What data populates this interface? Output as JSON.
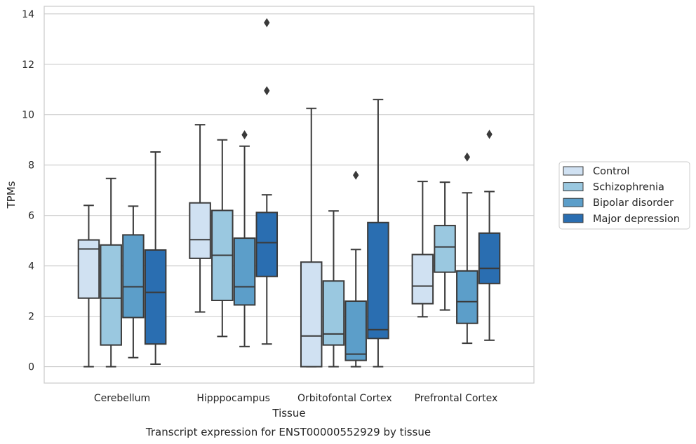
{
  "caption": "Transcript expression for ENST00000552929 by tissue",
  "chart_data": {
    "type": "boxplot",
    "xlabel": "Tissue",
    "ylabel": "TPMs",
    "ylim": [
      -0.65,
      14.3
    ],
    "yticks": [
      0,
      2,
      4,
      6,
      8,
      10,
      12,
      14
    ],
    "grid": true,
    "legend_position": "right",
    "categories": [
      "Cerebellum",
      "Hipppocampus",
      "Orbitofontal Cortex",
      "Prefrontal Cortex"
    ],
    "series": [
      {
        "name": "Control",
        "color": "#d0e1f2",
        "boxes": [
          {
            "whislo": 0.0,
            "q1": 2.72,
            "med": 4.67,
            "q3": 5.03,
            "whishi": 6.4,
            "fliers": []
          },
          {
            "whislo": 2.17,
            "q1": 4.3,
            "med": 5.04,
            "q3": 6.5,
            "whishi": 9.6,
            "fliers": []
          },
          {
            "whislo": 0.0,
            "q1": 0.0,
            "med": 1.22,
            "q3": 4.15,
            "whishi": 10.25,
            "fliers": []
          },
          {
            "whislo": 1.98,
            "q1": 2.5,
            "med": 3.2,
            "q3": 4.45,
            "whishi": 7.35,
            "fliers": []
          }
        ]
      },
      {
        "name": "Schizophrenia",
        "color": "#9ac8e0",
        "boxes": [
          {
            "whislo": 0.0,
            "q1": 0.86,
            "med": 2.72,
            "q3": 4.83,
            "whishi": 7.47,
            "fliers": []
          },
          {
            "whislo": 1.2,
            "q1": 2.63,
            "med": 4.42,
            "q3": 6.2,
            "whishi": 9.0,
            "fliers": []
          },
          {
            "whislo": 0.0,
            "q1": 0.86,
            "med": 1.3,
            "q3": 3.4,
            "whishi": 6.18,
            "fliers": []
          },
          {
            "whislo": 2.25,
            "q1": 3.75,
            "med": 4.75,
            "q3": 5.6,
            "whishi": 7.32,
            "fliers": []
          }
        ]
      },
      {
        "name": "Bipolar disorder",
        "color": "#5c9ec9",
        "boxes": [
          {
            "whislo": 0.36,
            "q1": 1.95,
            "med": 3.17,
            "q3": 5.23,
            "whishi": 6.37,
            "fliers": []
          },
          {
            "whislo": 0.8,
            "q1": 2.45,
            "med": 3.17,
            "q3": 5.1,
            "whishi": 8.75,
            "fliers": [
              9.2
            ]
          },
          {
            "whislo": 0.0,
            "q1": 0.25,
            "med": 0.5,
            "q3": 2.6,
            "whishi": 4.65,
            "fliers": [
              7.6
            ]
          },
          {
            "whislo": 0.93,
            "q1": 1.72,
            "med": 2.58,
            "q3": 3.8,
            "whishi": 6.9,
            "fliers": [
              8.32
            ]
          }
        ]
      },
      {
        "name": "Major depression",
        "color": "#2a6eb1",
        "boxes": [
          {
            "whislo": 0.1,
            "q1": 0.9,
            "med": 2.95,
            "q3": 4.63,
            "whishi": 8.52,
            "fliers": []
          },
          {
            "whislo": 0.9,
            "q1": 3.58,
            "med": 4.92,
            "q3": 6.12,
            "whishi": 6.82,
            "fliers": [
              10.95,
              13.65
            ]
          },
          {
            "whislo": 0.0,
            "q1": 1.12,
            "med": 1.47,
            "q3": 5.72,
            "whishi": 10.6,
            "fliers": []
          },
          {
            "whislo": 1.05,
            "q1": 3.3,
            "med": 3.9,
            "q3": 5.3,
            "whishi": 6.95,
            "fliers": [
              9.22
            ]
          }
        ]
      }
    ]
  }
}
